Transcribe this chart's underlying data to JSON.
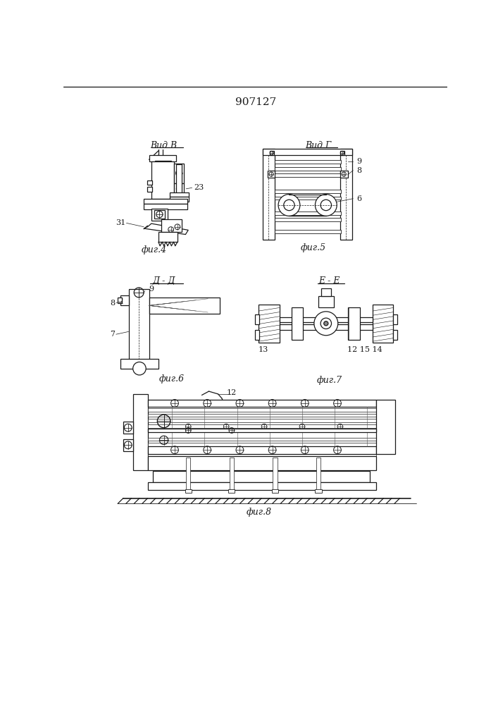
{
  "title": "907127",
  "fig4_label": "Вид В",
  "fig5_label": "Вид Г",
  "fig6_label": "Д - Д",
  "fig7_label": "Е - Е",
  "fig4_caption": "фиг.4",
  "fig5_caption": "фиг.5",
  "fig6_caption": "фиг.6",
  "fig7_caption": "фиг.7",
  "fig8_caption": "фиг.8",
  "bg_color": "#ffffff",
  "line_color": "#1a1a1a",
  "label_fontsize": 9,
  "caption_fontsize": 9,
  "number_fontsize": 8,
  "title_fontsize": 11
}
